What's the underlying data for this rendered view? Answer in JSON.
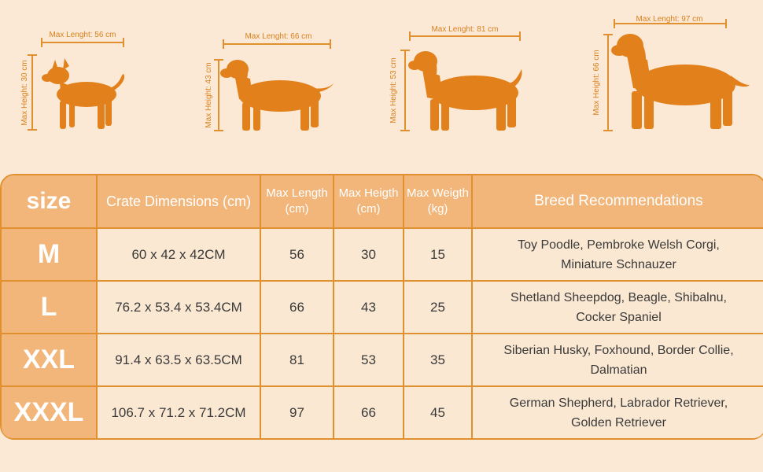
{
  "accent_color": "#e0902f",
  "dog_color": "#e2811c",
  "header_color": "#f2b67a",
  "dogs": [
    {
      "icon": "chihuahua-icon",
      "length_label": "Max Lenght: 56 cm",
      "height_label": "Max Height: 30 cm"
    },
    {
      "icon": "labrador-icon",
      "length_label": "Max Lenght: 66 cm",
      "height_label": "Max Height: 43 cm"
    },
    {
      "icon": "spaniel-icon",
      "length_label": "Max Lenght: 81 cm",
      "height_label": "Max Height: 53 cm"
    },
    {
      "icon": "hound-icon",
      "length_label": "Max Lenght: 97 cm",
      "height_label": "Max Height: 66 cm"
    }
  ],
  "table": {
    "headers": {
      "size": "size",
      "dims": "Crate Dimensions (cm)",
      "length_1": "Max Length",
      "length_2": "(cm)",
      "height_1": "Max Heigth",
      "height_2": "(cm)",
      "weight_1": "Max Weigth",
      "weight_2": "(kg)",
      "breed": "Breed Recommendations"
    },
    "rows": [
      {
        "size": "M",
        "dims": "60 x 42 x 42CM",
        "length": "56",
        "height": "30",
        "weight": "15",
        "breed_1": "Toy Poodle, Pembroke Welsh Corgi,",
        "breed_2": "Miniature Schnauzer"
      },
      {
        "size": "L",
        "dims": "76.2 x 53.4 x 53.4CM",
        "length": "66",
        "height": "43",
        "weight": "25",
        "breed_1": "Shetland Sheepdog, Beagle, Shibalnu,",
        "breed_2": "Cocker Spaniel"
      },
      {
        "size": "XXL",
        "dims": "91.4 x 63.5 x 63.5CM",
        "length": "81",
        "height": "53",
        "weight": "35",
        "breed_1": "Siberian Husky, Foxhound, Border Collie,",
        "breed_2": "Dalmatian"
      },
      {
        "size": "XXXL",
        "dims": "106.7 x 71.2 x 71.2CM",
        "length": "97",
        "height": "66",
        "weight": "45",
        "breed_1": "German Shepherd, Labrador Retriever,",
        "breed_2": "Golden Retriever"
      }
    ]
  }
}
